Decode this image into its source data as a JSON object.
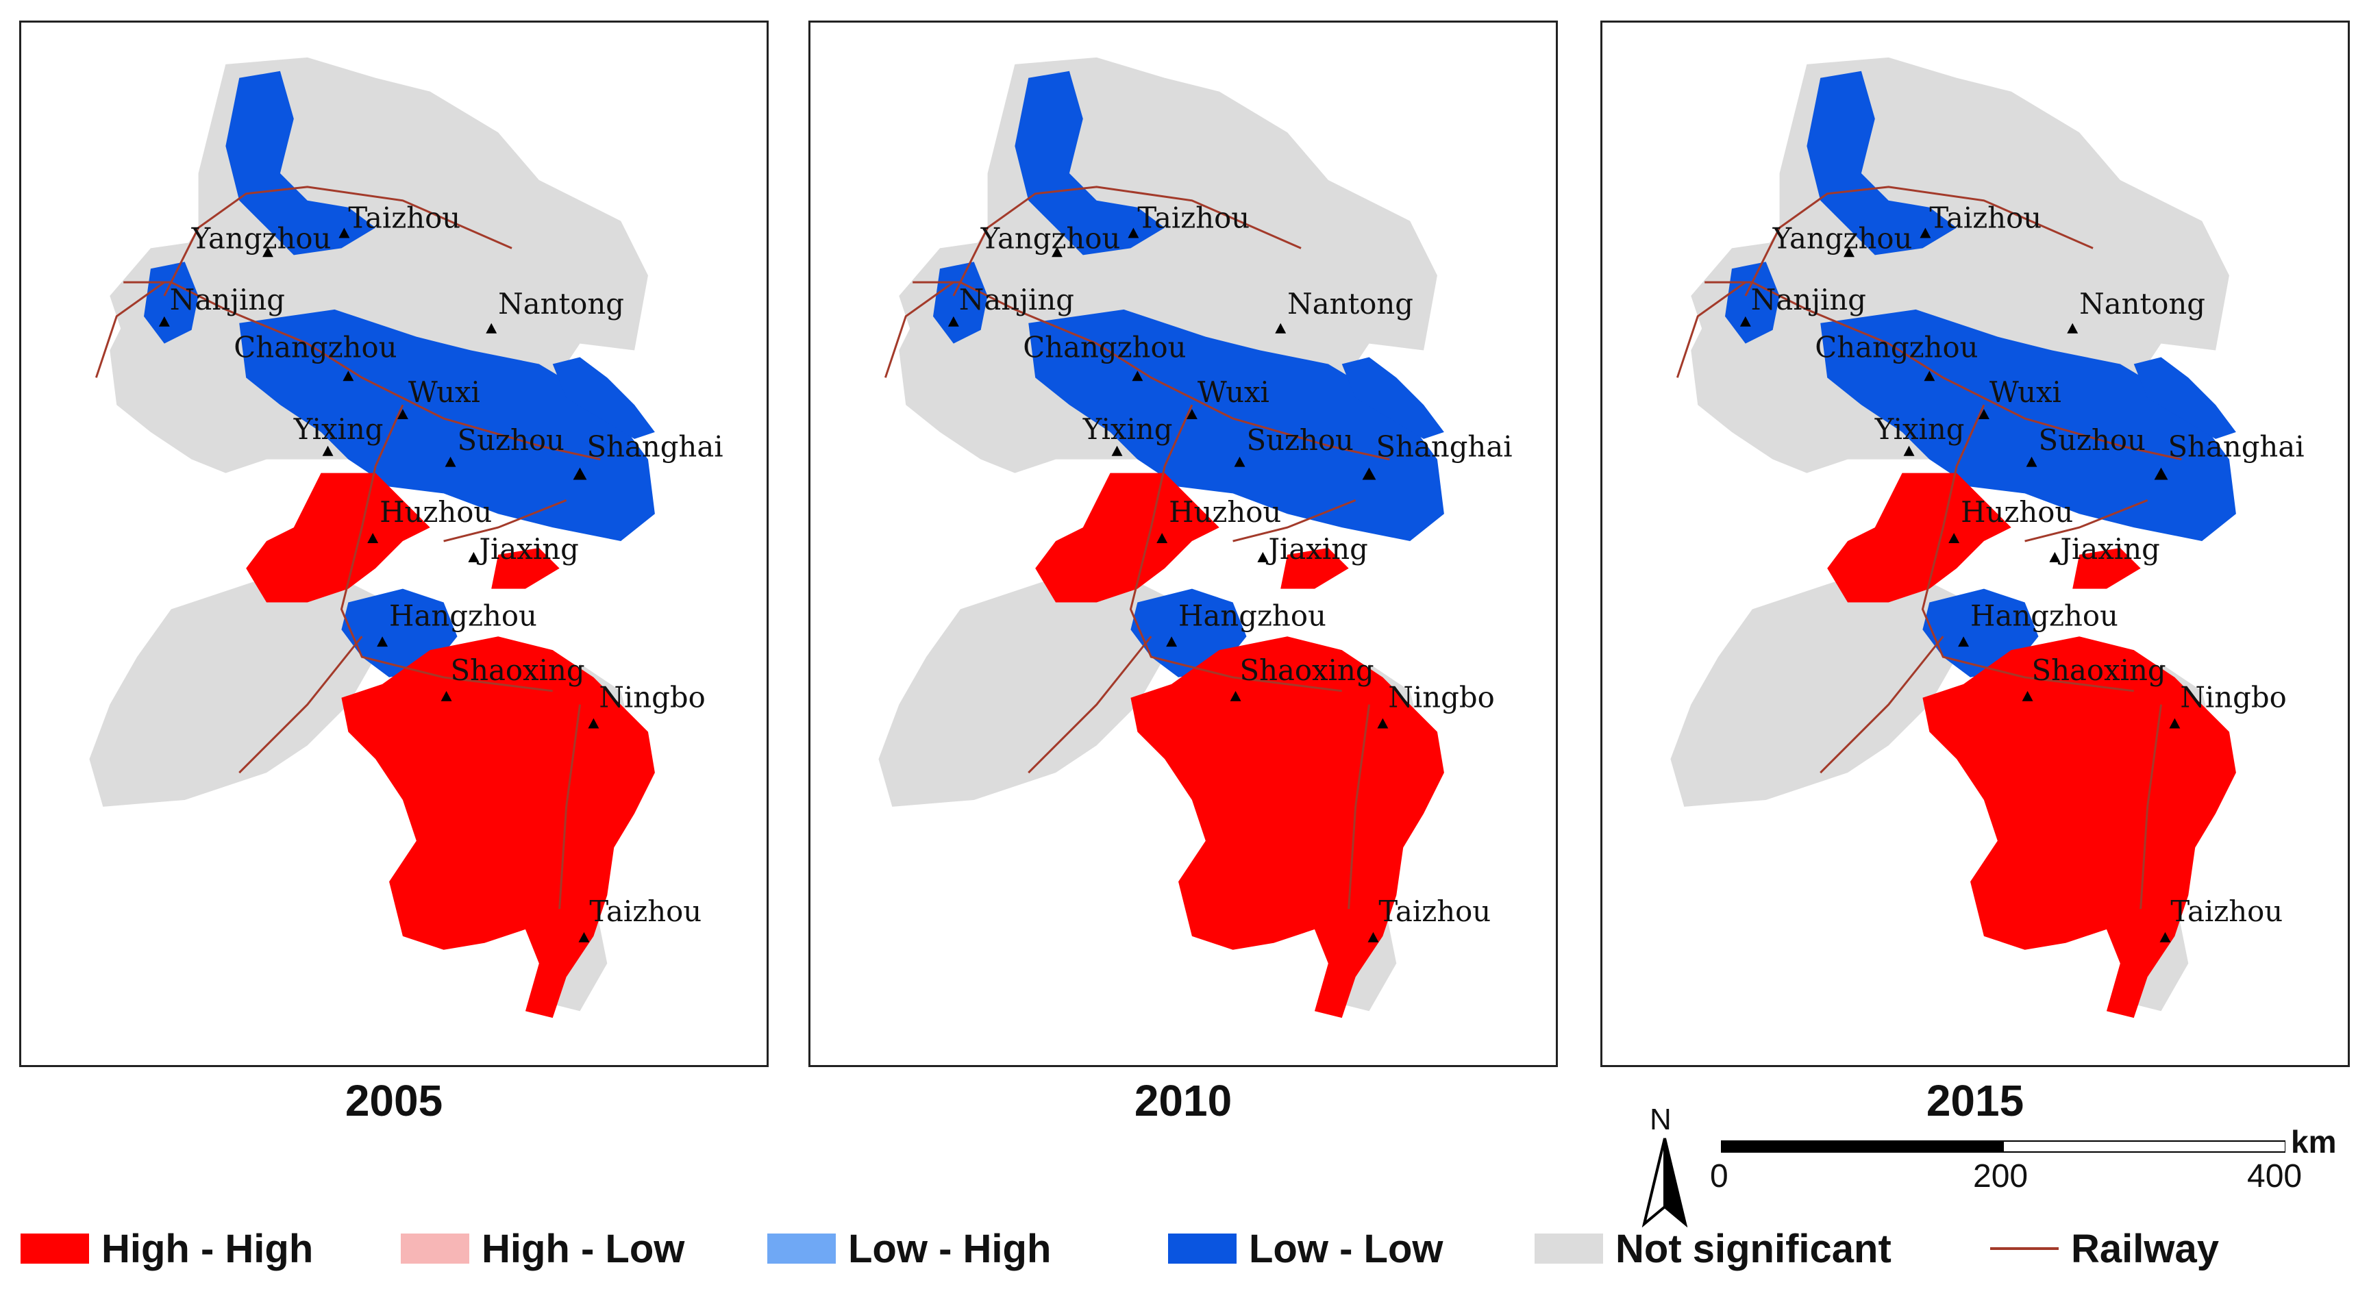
{
  "colors": {
    "high_high": "#ff0000",
    "high_low": "#f7b6b6",
    "low_high": "#6fa8f5",
    "low_low": "#0a55e0",
    "not_significant": "#dcdcdc",
    "railway": "#a33a2a",
    "water": "#ffffff"
  },
  "panels": [
    {
      "year": "2005"
    },
    {
      "year": "2010"
    },
    {
      "year": "2015"
    }
  ],
  "cities": [
    {
      "name": "Yangzhou"
    },
    {
      "name": "Taizhou"
    },
    {
      "name": "Nanjing"
    },
    {
      "name": "Nantong"
    },
    {
      "name": "Changzhou"
    },
    {
      "name": "Wuxi"
    },
    {
      "name": "Yixing"
    },
    {
      "name": "Suzhou"
    },
    {
      "name": "Shanghai"
    },
    {
      "name": "Huzhou"
    },
    {
      "name": "Jiaxing"
    },
    {
      "name": "Hangzhou"
    },
    {
      "name": "Shaoxing"
    },
    {
      "name": "Ningbo"
    },
    {
      "name": "Taizhou"
    }
  ],
  "legend": {
    "high_high": "High - High",
    "high_low": "High - Low",
    "low_high": "Low - High",
    "low_low": "Low - Low",
    "not_significant": "Not significant",
    "railway": "Railway"
  },
  "north_arrow": {
    "label": "N"
  },
  "scale_bar": {
    "ticks": [
      "0",
      "200",
      "400"
    ],
    "unit": "km"
  }
}
